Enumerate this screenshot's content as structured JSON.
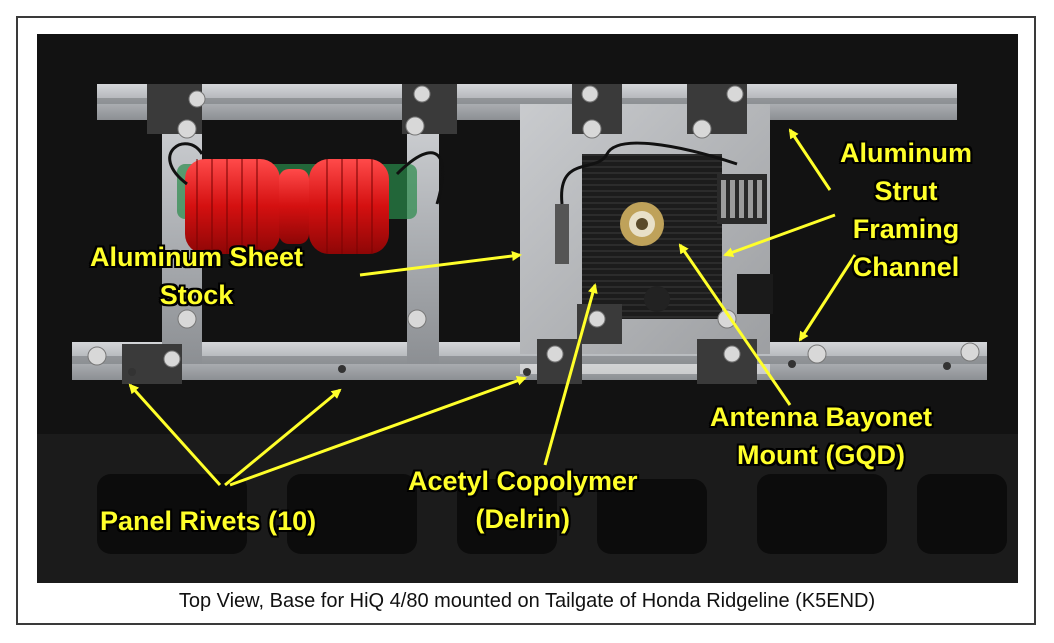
{
  "caption": "Top View, Base for HiQ 4/80 mounted on Tailgate of Honda Ridgeline  (K5END)",
  "labels": {
    "sheet_stock": [
      "Aluminum Sheet",
      "Stock"
    ],
    "strut_channel": [
      "Aluminum",
      "Strut",
      "Framing",
      "Channel"
    ],
    "bayonet_mount": [
      "Antenna Bayonet",
      "Mount (GQD)"
    ],
    "delrin": [
      "Acetyl Copolymer",
      "(Delrin)"
    ],
    "rivets": [
      "Panel Rivets (10)"
    ]
  },
  "colors": {
    "annotation": "#ffff2a",
    "coil": "#e01818",
    "aluminum": "#b9bcc0",
    "delrin": "#1a1a1a"
  }
}
